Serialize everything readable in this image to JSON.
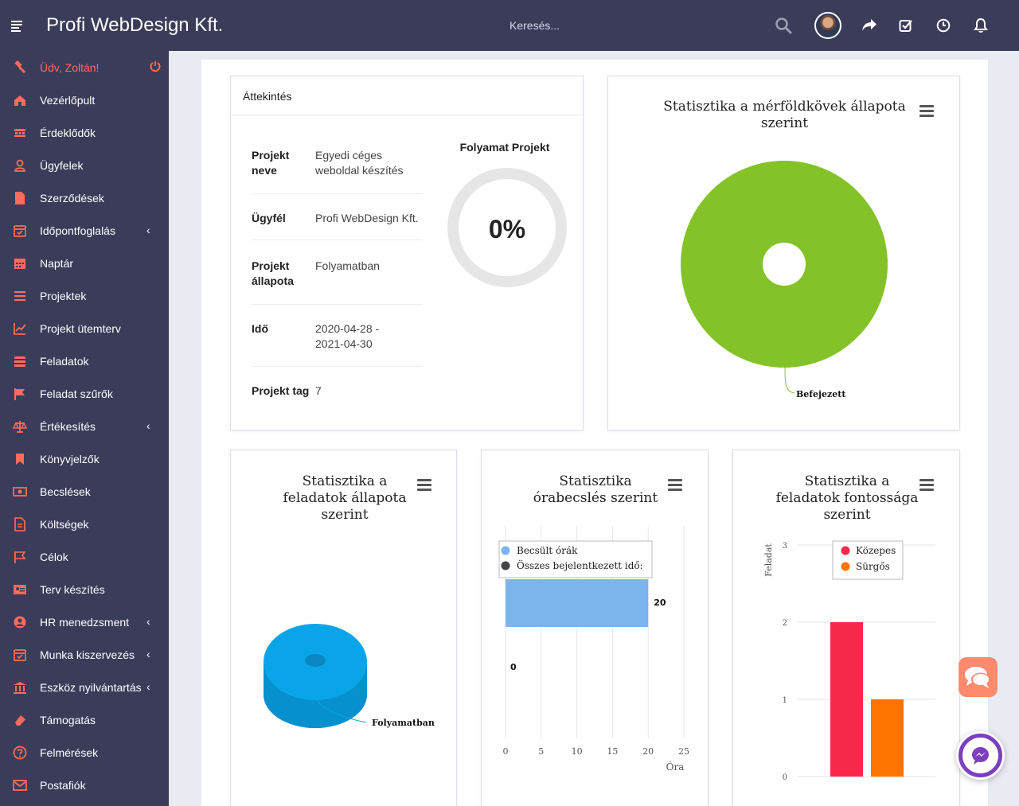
{
  "header": {
    "brand": "Profi WebDesign Kft.",
    "search_placeholder": "Keresés..."
  },
  "sidebar": {
    "greeting": "Üdv, Zoltán!",
    "items": [
      {
        "label": "Vezérlőpult",
        "icon": "home-icon"
      },
      {
        "label": "Érdeklődők",
        "icon": "leads-icon"
      },
      {
        "label": "Ügyfelek",
        "icon": "user-icon"
      },
      {
        "label": "Szerződések",
        "icon": "file-icon"
      },
      {
        "label": "Időpontfoglalás",
        "icon": "calendar-check-icon",
        "has_submenu": true
      },
      {
        "label": "Naptár",
        "icon": "calendar-icon"
      },
      {
        "label": "Projektek",
        "icon": "list-icon"
      },
      {
        "label": "Projekt ütemterv",
        "icon": "chart-line-icon"
      },
      {
        "label": "Feladatok",
        "icon": "tasks-icon"
      },
      {
        "label": "Feladat szűrők",
        "icon": "flag-icon"
      },
      {
        "label": "Értékesítés",
        "icon": "balance-scale-icon",
        "has_submenu": true
      },
      {
        "label": "Könyvjelzők",
        "icon": "bookmark-icon"
      },
      {
        "label": "Becslések",
        "icon": "money-icon"
      },
      {
        "label": "Költségek",
        "icon": "file-text-icon"
      },
      {
        "label": "Célok",
        "icon": "flag-outline-icon"
      },
      {
        "label": "Terv készítés",
        "icon": "id-card-icon"
      },
      {
        "label": "HR menedzsment",
        "icon": "user-circle-icon",
        "has_submenu": true
      },
      {
        "label": "Munka kiszervezés",
        "icon": "calendar-check-icon",
        "has_submenu": true
      },
      {
        "label": "Eszköz nyilvántartás",
        "icon": "bank-icon",
        "has_submenu": true
      },
      {
        "label": "Támogatás",
        "icon": "eraser-icon"
      },
      {
        "label": "Felmérések",
        "icon": "question-circle-icon"
      },
      {
        "label": "Postafiók",
        "icon": "envelope-icon"
      }
    ]
  },
  "overview": {
    "title": "Áttekintés",
    "rows": [
      {
        "key": "Projekt neve",
        "value": "Egyedi céges weboldal készítés"
      },
      {
        "key": "Ügyfél",
        "value": "Profi WebDesign Kft."
      },
      {
        "key": "Projekt állapota",
        "value": "Folyamatban"
      },
      {
        "key": "Idő",
        "value": "2020-04-28 - 2021-04-30"
      },
      {
        "key": "Projekt tag",
        "value": "7"
      }
    ],
    "progress": {
      "title": "Folyamat Projekt",
      "value_label": "0%",
      "value": 0
    }
  },
  "colors": {
    "sidebar_bg": "#3a3c59",
    "accent": "#ff6b5c",
    "milestone_green": "#84c229",
    "task_blue": "#0aa5e9",
    "estimate_blue": "#7cb5ec",
    "medium_red": "#f7284a",
    "urgent_orange": "#ff7300"
  },
  "chart_data": [
    {
      "type": "pie",
      "title": "Statisztika a mérföldkövek állapota szerint",
      "slices": [
        {
          "label": "Befejezett",
          "value": 100,
          "color": "#84c229"
        }
      ]
    },
    {
      "type": "pie",
      "title": "Statisztika a feladatok állapota szerint",
      "slices": [
        {
          "label": "Folyamatban",
          "value": 100,
          "color": "#0aa5e9"
        }
      ]
    },
    {
      "type": "bar",
      "orientation": "horizontal",
      "title": "Statisztika órabecslés szerint",
      "xlabel": "Óra",
      "xlim": [
        0,
        25
      ],
      "xticks": [
        "0",
        "5",
        "10",
        "15",
        "20",
        "25"
      ],
      "series": [
        {
          "name": "Becsült órák",
          "values": [
            20
          ],
          "color": "#7cb5ec",
          "label": "20"
        },
        {
          "name": "Összes bejelentkezett idő:",
          "values": [
            0
          ],
          "color": "#434348",
          "label": "0"
        }
      ]
    },
    {
      "type": "bar",
      "title": "Statisztika a feladatok fontossága szerint",
      "ylabel": "Feladat",
      "ylim": [
        0,
        3
      ],
      "yticks": [
        "0",
        "1",
        "2",
        "3"
      ],
      "series": [
        {
          "name": "Közepes",
          "values": [
            2
          ],
          "color": "#f7284a"
        },
        {
          "name": "Sürgős",
          "values": [
            1
          ],
          "color": "#ff7300"
        }
      ]
    }
  ]
}
